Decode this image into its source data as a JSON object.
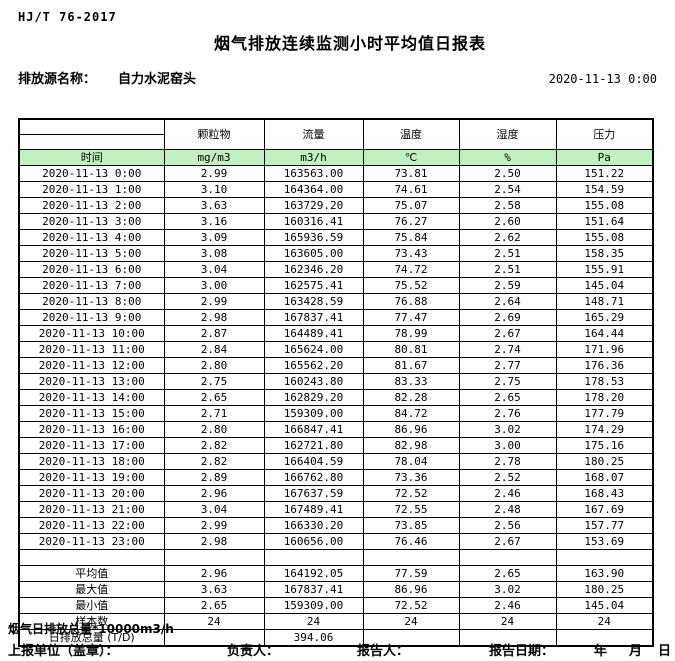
{
  "page": {
    "doc_code": "HJ/T  76-2017",
    "title": "烟气排放连续监测小时平均值日报表",
    "source_label": "排放源名称：",
    "source_name": "自力水泥窑头",
    "report_datetime": "2020-11-13 0:00"
  },
  "colors": {
    "unit_row_bg": "#c1f0c1",
    "border": "#000000"
  },
  "table": {
    "row_header_label": "时间",
    "columns": [
      {
        "name": "颗粒物",
        "unit": "mg/m3"
      },
      {
        "name": "流量",
        "unit": "m3/h"
      },
      {
        "name": "温度",
        "unit": "℃"
      },
      {
        "name": "湿度",
        "unit": "%"
      },
      {
        "name": "压力",
        "unit": "Pa"
      }
    ],
    "rows": [
      {
        "time": "2020-11-13 0:00",
        "values": [
          "2.99",
          "163563.00",
          "73.81",
          "2.50",
          "151.22"
        ]
      },
      {
        "time": "2020-11-13 1:00",
        "values": [
          "3.10",
          "164364.00",
          "74.61",
          "2.54",
          "154.59"
        ]
      },
      {
        "time": "2020-11-13 2:00",
        "values": [
          "3.63",
          "163729.20",
          "75.07",
          "2.58",
          "155.08"
        ]
      },
      {
        "time": "2020-11-13 3:00",
        "values": [
          "3.16",
          "160316.41",
          "76.27",
          "2.60",
          "151.64"
        ]
      },
      {
        "time": "2020-11-13 4:00",
        "values": [
          "3.09",
          "165936.59",
          "75.84",
          "2.62",
          "155.08"
        ]
      },
      {
        "time": "2020-11-13 5:00",
        "values": [
          "3.08",
          "163605.00",
          "73.43",
          "2.51",
          "158.35"
        ]
      },
      {
        "time": "2020-11-13 6:00",
        "values": [
          "3.04",
          "162346.20",
          "74.72",
          "2.51",
          "155.91"
        ]
      },
      {
        "time": "2020-11-13 7:00",
        "values": [
          "3.00",
          "162575.41",
          "75.52",
          "2.59",
          "145.04"
        ]
      },
      {
        "time": "2020-11-13 8:00",
        "values": [
          "2.99",
          "163428.59",
          "76.88",
          "2.64",
          "148.71"
        ]
      },
      {
        "time": "2020-11-13 9:00",
        "values": [
          "2.98",
          "167837.41",
          "77.47",
          "2.69",
          "165.29"
        ]
      },
      {
        "time": "2020-11-13 10:00",
        "values": [
          "2.87",
          "164489.41",
          "78.99",
          "2.67",
          "164.44"
        ]
      },
      {
        "time": "2020-11-13 11:00",
        "values": [
          "2.84",
          "165624.00",
          "80.81",
          "2.74",
          "171.96"
        ]
      },
      {
        "time": "2020-11-13 12:00",
        "values": [
          "2.80",
          "165562.20",
          "81.67",
          "2.77",
          "176.36"
        ]
      },
      {
        "time": "2020-11-13 13:00",
        "values": [
          "2.75",
          "160243.80",
          "83.33",
          "2.75",
          "178.53"
        ]
      },
      {
        "time": "2020-11-13 14:00",
        "values": [
          "2.65",
          "162829.20",
          "82.28",
          "2.65",
          "178.20"
        ]
      },
      {
        "time": "2020-11-13 15:00",
        "values": [
          "2.71",
          "159309.00",
          "84.72",
          "2.76",
          "177.79"
        ]
      },
      {
        "time": "2020-11-13 16:00",
        "values": [
          "2.80",
          "166847.41",
          "86.96",
          "3.02",
          "174.29"
        ]
      },
      {
        "time": "2020-11-13 17:00",
        "values": [
          "2.82",
          "162721.80",
          "82.98",
          "3.00",
          "175.16"
        ]
      },
      {
        "time": "2020-11-13 18:00",
        "values": [
          "2.82",
          "166404.59",
          "78.04",
          "2.78",
          "180.25"
        ]
      },
      {
        "time": "2020-11-13 19:00",
        "values": [
          "2.89",
          "166762.80",
          "73.36",
          "2.52",
          "168.07"
        ]
      },
      {
        "time": "2020-11-13 20:00",
        "values": [
          "2.96",
          "167637.59",
          "72.52",
          "2.46",
          "168.43"
        ]
      },
      {
        "time": "2020-11-13 21:00",
        "values": [
          "3.04",
          "167489.41",
          "72.55",
          "2.48",
          "167.69"
        ]
      },
      {
        "time": "2020-11-13 22:00",
        "values": [
          "2.99",
          "166330.20",
          "73.85",
          "2.56",
          "157.77"
        ]
      },
      {
        "time": "2020-11-13 23:00",
        "values": [
          "2.98",
          "160656.00",
          "76.46",
          "2.67",
          "153.69"
        ]
      }
    ],
    "summary": [
      {
        "label": "平均值",
        "values": [
          "2.96",
          "164192.05",
          "77.59",
          "2.65",
          "163.90"
        ]
      },
      {
        "label": "最大值",
        "values": [
          "3.63",
          "167837.41",
          "86.96",
          "3.02",
          "180.25"
        ]
      },
      {
        "label": "最小值",
        "values": [
          "2.65",
          "159309.00",
          "72.52",
          "2.46",
          "145.04"
        ]
      },
      {
        "label": "样本数",
        "values": [
          "24",
          "24",
          "24",
          "24",
          "24"
        ]
      },
      {
        "label": "日排放总量 (T/D)",
        "values": [
          "",
          "394.06",
          "",
          "",
          ""
        ]
      }
    ]
  },
  "footer": {
    "note": "烟气日排放总量*10000m3/h",
    "report_unit_label": "上报单位（盖章）：",
    "responsible_label": "负责人：",
    "reporter_label": "报告人：",
    "report_date_label": "报告日期：",
    "year_label": "年",
    "month_label": "月",
    "day_label": "日"
  }
}
